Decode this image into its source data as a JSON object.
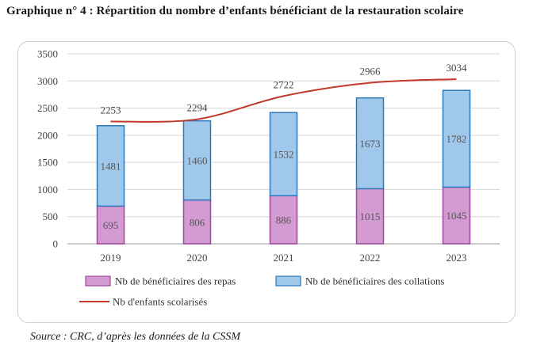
{
  "title": "Graphique n° 4 :  Répartition du nombre d’enfants bénéficiant de la restauration scolaire",
  "source": "Source : CRC, d’après les données de la CSSM",
  "chart_data": {
    "type": "bar",
    "stacked": true,
    "categories": [
      "2019",
      "2020",
      "2021",
      "2022",
      "2023"
    ],
    "ylim": [
      0,
      3500
    ],
    "yticks": [
      0,
      500,
      1000,
      1500,
      2000,
      2500,
      3000,
      3500
    ],
    "grid": true,
    "legend_position": "bottom",
    "series": [
      {
        "name": "Nb de bénéficiaires des repas",
        "kind": "bar",
        "color": "#d49ad2",
        "border": "#9c4a9a",
        "values": [
          695,
          806,
          886,
          1015,
          1045
        ]
      },
      {
        "name": "Nb de bénéficiaires des collations",
        "kind": "bar",
        "color": "#9fc8ea",
        "border": "#2f78b8",
        "values": [
          1481,
          1460,
          1532,
          1673,
          1782
        ]
      },
      {
        "name": "Nb d'enfants scolarisés",
        "kind": "line",
        "color": "#c0392b",
        "values": [
          2253,
          2294,
          2722,
          2966,
          3034
        ]
      }
    ]
  }
}
